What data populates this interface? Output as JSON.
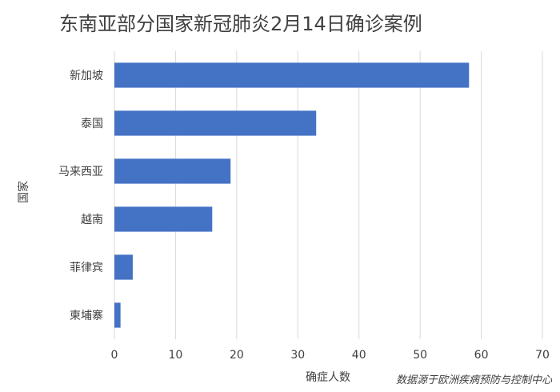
{
  "chart_data": {
    "type": "bar",
    "orientation": "horizontal",
    "title": "东南亚部分国家新冠肺炎2月14日确诊案例",
    "categories": [
      "新加坡",
      "泰国",
      "马来西亚",
      "越南",
      "菲律宾",
      "柬埔寨"
    ],
    "values": [
      58,
      33,
      19,
      16,
      3,
      1
    ],
    "xlabel": "确症人数",
    "ylabel": "国家",
    "xlim": [
      0,
      70
    ],
    "xticks": [
      "0",
      "10",
      "20",
      "30",
      "40",
      "50",
      "60",
      "70"
    ],
    "grid": true,
    "bar_color": "#4472c4",
    "source_note": "数据源于欧洲疾病预防与控制中心"
  }
}
